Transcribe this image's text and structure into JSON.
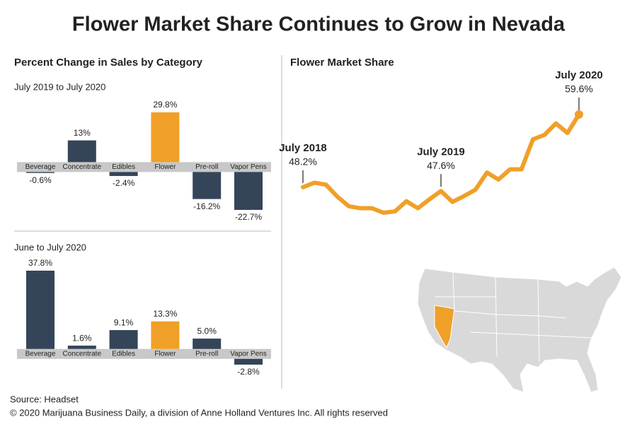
{
  "title": "Flower Market Share Continues to Grow in Nevada",
  "source": "Source: Headset",
  "copyright": "© 2020 Marijuana Business Daily, a division of Anne Holland Ventures Inc. All rights reserved",
  "chart_data": [
    {
      "type": "bar",
      "title": "Percent Change in Sales by Category",
      "subtitle": "July 2019 to July 2020",
      "categories": [
        "Beverage",
        "Concentrate",
        "Edibles",
        "Flower",
        "Pre-roll",
        "Vapor Pens"
      ],
      "values": [
        -0.6,
        13,
        -2.4,
        29.8,
        -16.2,
        -22.7
      ],
      "value_labels": [
        "-0.6%",
        "13%",
        "-2.4%",
        "29.8%",
        "-16.2%",
        "-22.7%"
      ],
      "colors": [
        "#344559",
        "#344559",
        "#344559",
        "#f0a028",
        "#344559",
        "#344559"
      ]
    },
    {
      "type": "bar",
      "subtitle": "June to July 2020",
      "categories": [
        "Beverage",
        "Concentrate",
        "Edibles",
        "Flower",
        "Pre-roll",
        "Vapor Pens"
      ],
      "values": [
        37.8,
        1.6,
        9.1,
        13.3,
        5.0,
        -2.8
      ],
      "value_labels": [
        "37.8%",
        "1.6%",
        "9.1%",
        "13.3%",
        "5.0%",
        "-2.8%"
      ],
      "colors": [
        "#344559",
        "#344559",
        "#344559",
        "#f0a028",
        "#344559",
        "#344559"
      ]
    },
    {
      "type": "line",
      "title": "Flower Market Share",
      "categories": [
        "July 2018",
        null,
        null,
        null,
        null,
        null,
        null,
        null,
        null,
        null,
        null,
        null,
        "July 2019",
        null,
        null,
        null,
        null,
        null,
        null,
        null,
        null,
        null,
        null,
        null,
        "July 2020"
      ],
      "values": [
        48.2,
        48.9,
        48.6,
        46.7,
        45.2,
        44.9,
        44.9,
        44.2,
        44.4,
        46.0,
        44.9,
        46.3,
        47.6,
        45.9,
        46.8,
        47.8,
        50.5,
        49.4,
        51.0,
        51.0,
        55.7,
        56.4,
        58.2,
        56.7,
        59.6
      ],
      "value_labels": [
        "48.2%",
        null,
        null,
        null,
        null,
        null,
        null,
        null,
        null,
        null,
        null,
        null,
        "47.6%",
        null,
        null,
        null,
        null,
        null,
        null,
        null,
        null,
        null,
        null,
        null,
        "59.6%"
      ],
      "color": "#f0a028"
    }
  ]
}
